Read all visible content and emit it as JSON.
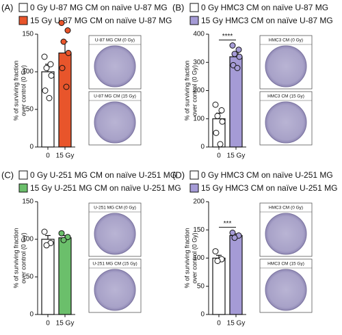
{
  "chart_data": [
    {
      "type": "bar",
      "label": "(A)",
      "ylabel": [
        "% of surviving fraction",
        "over control (0 Gy)"
      ],
      "categories": [
        "0",
        "15 Gy"
      ],
      "ylim": [
        0,
        150
      ],
      "yticks": [
        0,
        50,
        100,
        150
      ],
      "series": [
        {
          "name": "0 Gy U-87 MG CM on naïve U-87 MG",
          "color": "#ffffff",
          "value": 100,
          "error": 10,
          "points": [
            120,
            110,
            105,
            95,
            75,
            65
          ]
        },
        {
          "name": "15 Gy U-87 MG CM on naïve U-87 MG",
          "color": "#e8552b",
          "value": 125,
          "error": 15,
          "points": [
            165,
            155,
            140,
            125,
            105,
            80
          ]
        }
      ],
      "images": [
        "U-87 MG CM (0 Gy)",
        "U-87 MG CM (15 Gy)"
      ]
    },
    {
      "type": "bar",
      "label": "(B)",
      "ylabel": [
        "% of surviving fraction",
        "over control (0 Gy)"
      ],
      "categories": [
        "0",
        "15 Gy"
      ],
      "ylim": [
        0,
        400
      ],
      "yticks": [
        0,
        100,
        200,
        300,
        400
      ],
      "annotation": "****",
      "series": [
        {
          "name": "0 Gy HMC3 CM on naïve U-87 MG",
          "color": "#ffffff",
          "value": 100,
          "error": 20,
          "points": [
            150,
            130,
            110,
            90,
            50,
            10
          ]
        },
        {
          "name": "15 Gy HMC3 CM on naïve U-87 MG",
          "color": "#a59bd6",
          "value": 320,
          "error": 12,
          "points": [
            360,
            345,
            330,
            320,
            290,
            280
          ]
        }
      ],
      "images": [
        "HMC3 CM (0 Gy)",
        "HMC3 CM (15 Gy)"
      ]
    },
    {
      "type": "bar",
      "label": "(C)",
      "ylabel": [
        "% of surviving fraction",
        "over control (0 Gy)"
      ],
      "categories": [
        "0",
        "15 Gy"
      ],
      "ylim": [
        0,
        150
      ],
      "yticks": [
        0,
        50,
        100,
        150
      ],
      "series": [
        {
          "name": "0 Gy U-251 MG CM on naïve U-251 MG",
          "color": "#ffffff",
          "value": 100,
          "error": 5,
          "points": [
            110,
            95,
            92
          ]
        },
        {
          "name": "15 Gy U-251 MG CM on naïve U-251 MG",
          "color": "#6bbf6b",
          "value": 102,
          "error": 3,
          "points": [
            108,
            103,
            99
          ]
        }
      ],
      "images": [
        "U-251 MG CM (0 Gy)",
        "U-251 MG CM (15 Gy)"
      ]
    },
    {
      "type": "bar",
      "label": "(D)",
      "ylabel": [
        "% of surviving fraction",
        "over control (0 Gy)"
      ],
      "categories": [
        "0",
        "15 Gy"
      ],
      "ylim": [
        0,
        200
      ],
      "yticks": [
        0,
        50,
        100,
        150,
        200
      ],
      "annotation": "***",
      "series": [
        {
          "name": "0 Gy HMC3 CM on naïve U-251 MG",
          "color": "#ffffff",
          "value": 100,
          "error": 5,
          "points": [
            112,
            98,
            95
          ]
        },
        {
          "name": "15 Gy HMC3 CM on naïve U-251 MG",
          "color": "#a59bd6",
          "value": 140,
          "error": 3,
          "points": [
            145,
            140,
            136
          ]
        }
      ],
      "images": [
        "HMC3 CM (0 Gy)",
        "HMC3 CM (15 Gy)"
      ]
    }
  ]
}
